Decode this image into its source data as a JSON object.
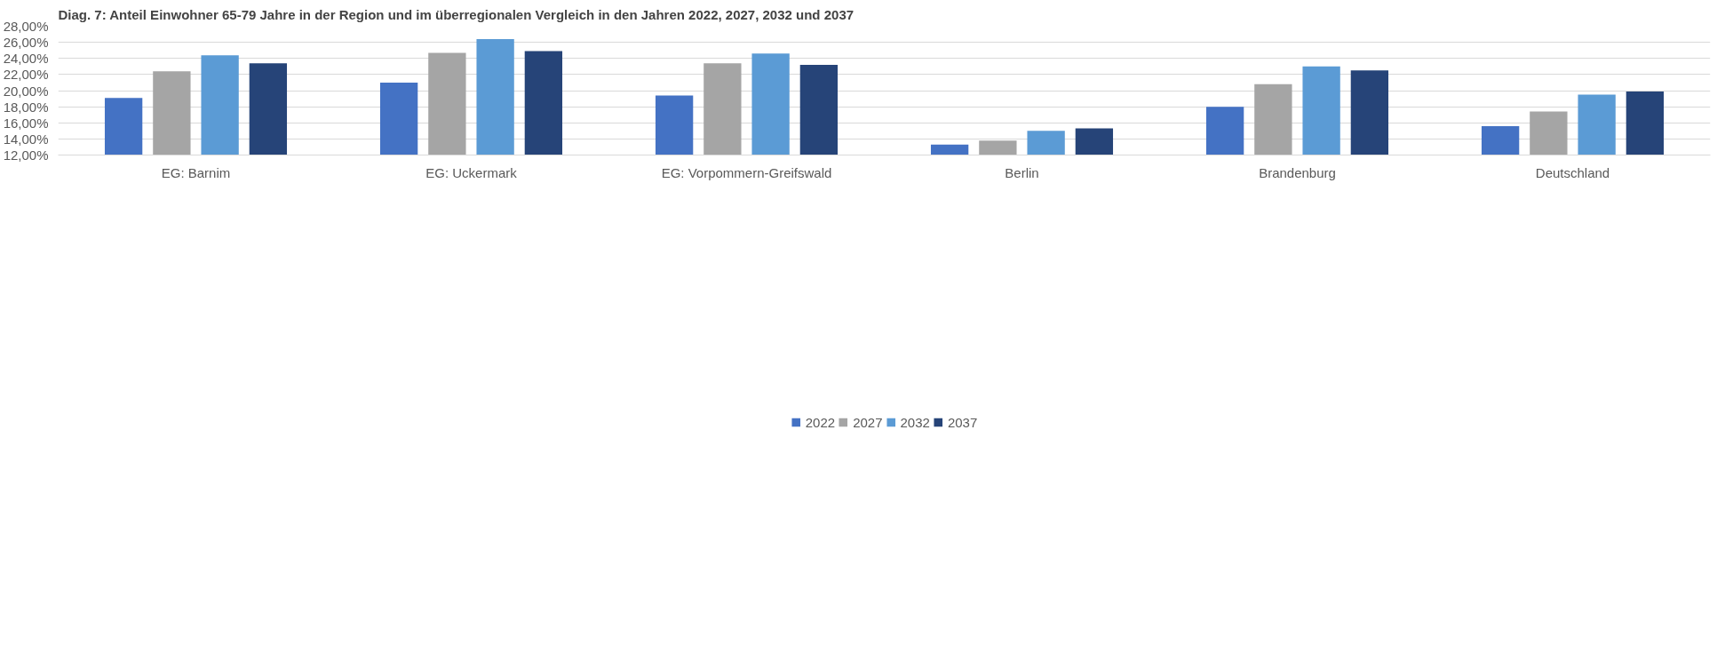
{
  "chart_data": {
    "type": "bar",
    "title": "Diag. 7: Anteil Einwohner 65-79 Jahre in der Region und im überregionalen Vergleich in den Jahren 2022, 2027, 2032 und 2037",
    "categories": [
      "EG: Barnim",
      "EG: Uckermark",
      "EG: Vorpommern-Greifswald",
      "Berlin",
      "Brandenburg",
      "Deutschland"
    ],
    "series": [
      {
        "name": "2022",
        "color": "#4472c4",
        "values": [
          19.1,
          21.0,
          19.4,
          13.3,
          18.0,
          15.6
        ]
      },
      {
        "name": "2027",
        "color": "#a5a5a5",
        "values": [
          22.4,
          24.7,
          23.4,
          13.8,
          20.8,
          17.4
        ]
      },
      {
        "name": "2032",
        "color": "#5b9bd5",
        "values": [
          24.4,
          26.4,
          24.6,
          15.0,
          23.0,
          19.5
        ]
      },
      {
        "name": "2037",
        "color": "#264478",
        "values": [
          23.4,
          24.9,
          23.2,
          15.3,
          22.5,
          19.9
        ]
      }
    ],
    "ylim": [
      12,
      28
    ],
    "yticks": [
      {
        "value": 12,
        "label": "12,00%"
      },
      {
        "value": 14,
        "label": "14,00%"
      },
      {
        "value": 16,
        "label": "16,00%"
      },
      {
        "value": 18,
        "label": "18,00%"
      },
      {
        "value": 20,
        "label": "20,00%"
      },
      {
        "value": 22,
        "label": "22,00%"
      },
      {
        "value": 24,
        "label": "24,00%"
      },
      {
        "value": 26,
        "label": "26,00%"
      },
      {
        "value": 28,
        "label": "28,00%"
      }
    ],
    "grid": "y",
    "legend": "bottom"
  }
}
